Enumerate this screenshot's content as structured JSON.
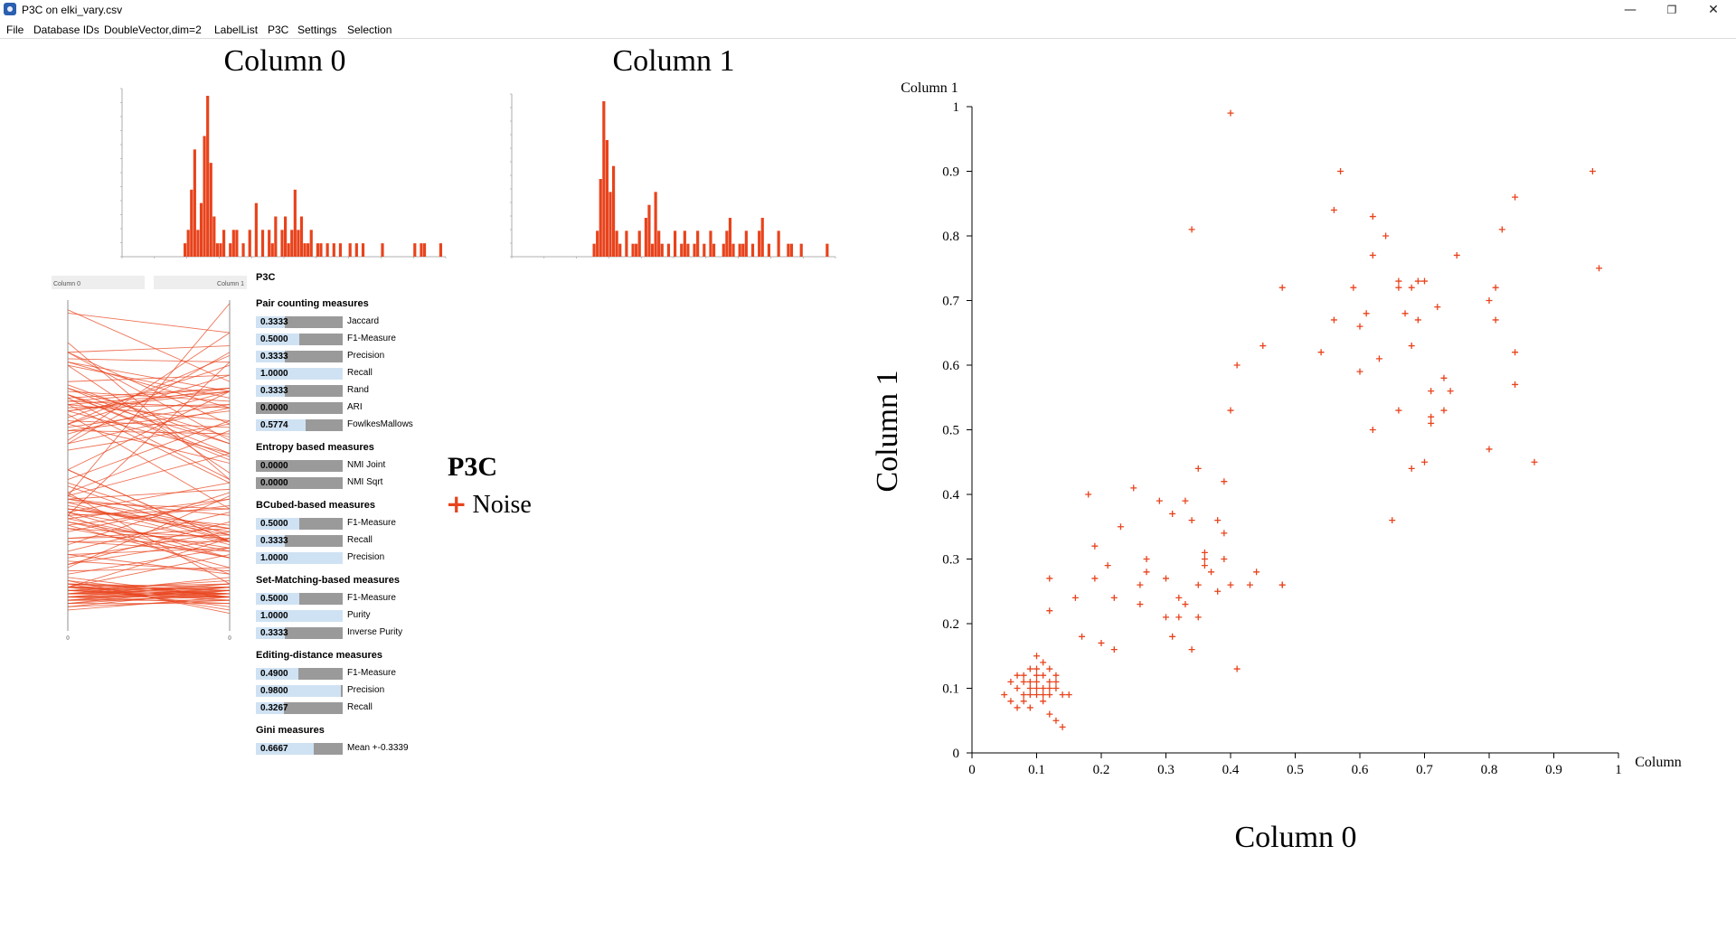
{
  "window": {
    "title": "P3C on elki_vary.csv",
    "minimize_icon": "minimize-icon",
    "maximize_icon": "restore-icon",
    "close_icon": "close-icon"
  },
  "menu": [
    "File",
    "Database IDs",
    "DoubleVector,dim=2",
    "LabelList",
    "P3C",
    "Settings",
    "Selection"
  ],
  "colors": {
    "accent": "#e8431c",
    "bar_gray": "#9a9a9a",
    "bar_fill": "#cfe2f3"
  },
  "histograms": [
    {
      "title": "Column 0"
    },
    {
      "title": "Column 1"
    }
  ],
  "parallel": {
    "axis_left_label": "Column 0",
    "axis_right_label": "Column 1",
    "axis_left_zero": "0",
    "axis_right_zero": "0"
  },
  "evaluation": {
    "header": "P3C",
    "groups": [
      {
        "title": "Pair counting measures",
        "rows": [
          {
            "value": "0.3333",
            "fraction": 0.3333,
            "name": "Jaccard"
          },
          {
            "value": "0.5000",
            "fraction": 0.5,
            "name": "F1-Measure"
          },
          {
            "value": "0.3333",
            "fraction": 0.3333,
            "name": "Precision"
          },
          {
            "value": "1.0000",
            "fraction": 1.0,
            "name": "Recall"
          },
          {
            "value": "0.3333",
            "fraction": 0.3333,
            "name": "Rand"
          },
          {
            "value": "0.0000",
            "fraction": 0.0,
            "name": "ARI"
          },
          {
            "value": "0.5774",
            "fraction": 0.5774,
            "name": "FowlkesMallows"
          }
        ]
      },
      {
        "title": "Entropy based measures",
        "rows": [
          {
            "value": "0.0000",
            "fraction": 0.0,
            "name": "NMI Joint"
          },
          {
            "value": "0.0000",
            "fraction": 0.0,
            "name": "NMI Sqrt"
          }
        ]
      },
      {
        "title": "BCubed-based measures",
        "rows": [
          {
            "value": "0.5000",
            "fraction": 0.5,
            "name": "F1-Measure"
          },
          {
            "value": "0.3333",
            "fraction": 0.3333,
            "name": "Recall"
          },
          {
            "value": "1.0000",
            "fraction": 1.0,
            "name": "Precision"
          }
        ]
      },
      {
        "title": "Set-Matching-based measures",
        "rows": [
          {
            "value": "0.5000",
            "fraction": 0.5,
            "name": "F1-Measure"
          },
          {
            "value": "1.0000",
            "fraction": 1.0,
            "name": "Purity"
          },
          {
            "value": "0.3333",
            "fraction": 0.3333,
            "name": "Inverse Purity"
          }
        ]
      },
      {
        "title": "Editing-distance measures",
        "rows": [
          {
            "value": "0.4900",
            "fraction": 0.49,
            "name": "F1-Measure"
          },
          {
            "value": "0.9800",
            "fraction": 0.98,
            "name": "Precision"
          },
          {
            "value": "0.3267",
            "fraction": 0.3267,
            "name": "Recall"
          }
        ]
      },
      {
        "title": "Gini measures",
        "rows": [
          {
            "value": "0.6667",
            "fraction": 0.6667,
            "name": "Mean +-0.3339"
          }
        ]
      }
    ]
  },
  "legend": {
    "title": "P3C",
    "items": [
      {
        "marker": "+",
        "label": "Noise"
      }
    ]
  },
  "chart_data": [
    {
      "type": "bar",
      "title": "Column 0",
      "xlim": [
        0,
        1
      ],
      "bins": 100,
      "values": [
        0,
        0,
        0,
        0,
        0,
        0,
        0,
        0,
        0,
        0,
        0,
        0,
        0,
        0,
        0,
        0,
        0,
        0,
        0,
        1,
        2,
        5,
        8,
        2,
        4,
        9,
        12,
        7,
        3,
        1,
        1,
        2,
        0,
        1,
        2,
        2,
        0,
        1,
        0,
        2,
        0,
        4,
        0,
        2,
        0,
        2,
        1,
        3,
        0,
        2,
        3,
        1,
        2,
        5,
        2,
        3,
        1,
        1,
        2,
        0,
        1,
        1,
        0,
        1,
        0,
        1,
        0,
        1,
        0,
        0,
        1,
        0,
        1,
        0,
        1,
        0,
        0,
        0,
        0,
        0,
        1,
        0,
        0,
        0,
        0,
        0,
        0,
        0,
        0,
        0,
        1,
        0,
        1,
        1,
        0,
        0,
        0,
        0,
        1,
        0
      ]
    },
    {
      "type": "bar",
      "title": "Column 1",
      "xlim": [
        0,
        1
      ],
      "bins": 100,
      "values": [
        0,
        0,
        0,
        0,
        0,
        0,
        0,
        0,
        0,
        0,
        0,
        0,
        0,
        0,
        0,
        0,
        0,
        0,
        0,
        0,
        0,
        0,
        0,
        0,
        0,
        1,
        2,
        6,
        12,
        9,
        5,
        7,
        2,
        1,
        0,
        2,
        0,
        1,
        1,
        2,
        0,
        3,
        4,
        1,
        5,
        2,
        1,
        0,
        1,
        0,
        2,
        0,
        1,
        2,
        1,
        0,
        1,
        2,
        0,
        1,
        0,
        2,
        1,
        0,
        0,
        1,
        2,
        3,
        1,
        0,
        1,
        1,
        2,
        0,
        1,
        0,
        2,
        3,
        0,
        1,
        0,
        0,
        2,
        0,
        0,
        1,
        1,
        0,
        0,
        1,
        0,
        0,
        0,
        0,
        0,
        0,
        0,
        1,
        0,
        0
      ]
    },
    {
      "type": "scatter",
      "title": "",
      "xlabel": "Column 0",
      "ylabel": "Column 1",
      "x_axis_end_label": "Column",
      "y_axis_top_label": "Column 1",
      "xlim": [
        0,
        1
      ],
      "ylim": [
        0,
        1
      ],
      "xticks": [
        "0",
        "0.1",
        "0.2",
        "0.3",
        "0.4",
        "0.5",
        "0.6",
        "0.7",
        "0.8",
        "0.9",
        "1"
      ],
      "yticks": [
        "0",
        "0.1",
        "0.2",
        "0.3",
        "0.4",
        "0.5",
        "0.6",
        "0.7",
        "0.8",
        "0.9",
        "1"
      ],
      "marker": "+",
      "grid": false,
      "series": [
        {
          "name": "Noise",
          "points": [
            [
              0.05,
              0.09
            ],
            [
              0.06,
              0.11
            ],
            [
              0.07,
              0.07
            ],
            [
              0.07,
              0.1
            ],
            [
              0.08,
              0.08
            ],
            [
              0.08,
              0.12
            ],
            [
              0.08,
              0.09
            ],
            [
              0.09,
              0.1
            ],
            [
              0.09,
              0.11
            ],
            [
              0.09,
              0.07
            ],
            [
              0.1,
              0.09
            ],
            [
              0.1,
              0.13
            ],
            [
              0.1,
              0.1
            ],
            [
              0.1,
              0.11
            ],
            [
              0.11,
              0.08
            ],
            [
              0.11,
              0.12
            ],
            [
              0.11,
              0.1
            ],
            [
              0.11,
              0.14
            ],
            [
              0.12,
              0.09
            ],
            [
              0.12,
              0.11
            ],
            [
              0.12,
              0.13
            ],
            [
              0.12,
              0.06
            ],
            [
              0.13,
              0.1
            ],
            [
              0.13,
              0.12
            ],
            [
              0.13,
              0.05
            ],
            [
              0.14,
              0.09
            ],
            [
              0.14,
              0.04
            ],
            [
              0.15,
              0.09
            ],
            [
              0.1,
              0.15
            ],
            [
              0.09,
              0.13
            ],
            [
              0.06,
              0.08
            ],
            [
              0.11,
              0.09
            ],
            [
              0.1,
              0.12
            ],
            [
              0.08,
              0.11
            ],
            [
              0.12,
              0.1
            ],
            [
              0.13,
              0.11
            ],
            [
              0.07,
              0.12
            ],
            [
              0.09,
              0.09
            ],
            [
              0.12,
              0.22
            ],
            [
              0.12,
              0.27
            ],
            [
              0.16,
              0.24
            ],
            [
              0.17,
              0.18
            ],
            [
              0.18,
              0.4
            ],
            [
              0.19,
              0.32
            ],
            [
              0.19,
              0.27
            ],
            [
              0.2,
              0.17
            ],
            [
              0.21,
              0.29
            ],
            [
              0.22,
              0.16
            ],
            [
              0.22,
              0.24
            ],
            [
              0.23,
              0.35
            ],
            [
              0.25,
              0.41
            ],
            [
              0.26,
              0.26
            ],
            [
              0.26,
              0.23
            ],
            [
              0.27,
              0.28
            ],
            [
              0.27,
              0.3
            ],
            [
              0.29,
              0.39
            ],
            [
              0.3,
              0.27
            ],
            [
              0.3,
              0.21
            ],
            [
              0.31,
              0.37
            ],
            [
              0.31,
              0.18
            ],
            [
              0.32,
              0.21
            ],
            [
              0.32,
              0.24
            ],
            [
              0.33,
              0.23
            ],
            [
              0.33,
              0.39
            ],
            [
              0.34,
              0.36
            ],
            [
              0.34,
              0.16
            ],
            [
              0.35,
              0.26
            ],
            [
              0.35,
              0.44
            ],
            [
              0.35,
              0.21
            ],
            [
              0.36,
              0.29
            ],
            [
              0.36,
              0.31
            ],
            [
              0.36,
              0.3
            ],
            [
              0.37,
              0.28
            ],
            [
              0.38,
              0.25
            ],
            [
              0.38,
              0.36
            ],
            [
              0.39,
              0.42
            ],
            [
              0.39,
              0.34
            ],
            [
              0.39,
              0.3
            ],
            [
              0.4,
              0.26
            ],
            [
              0.4,
              0.53
            ],
            [
              0.41,
              0.13
            ],
            [
              0.43,
              0.26
            ],
            [
              0.44,
              0.28
            ],
            [
              0.45,
              0.63
            ],
            [
              0.48,
              0.26
            ],
            [
              0.48,
              0.26
            ],
            [
              0.48,
              0.72
            ],
            [
              0.34,
              0.81
            ],
            [
              0.4,
              0.99
            ],
            [
              0.41,
              0.6
            ],
            [
              0.54,
              0.62
            ],
            [
              0.56,
              0.84
            ],
            [
              0.56,
              0.67
            ],
            [
              0.57,
              0.9
            ],
            [
              0.59,
              0.72
            ],
            [
              0.6,
              0.66
            ],
            [
              0.6,
              0.59
            ],
            [
              0.61,
              0.68
            ],
            [
              0.62,
              0.77
            ],
            [
              0.62,
              0.83
            ],
            [
              0.62,
              0.5
            ],
            [
              0.63,
              0.61
            ],
            [
              0.64,
              0.8
            ],
            [
              0.65,
              0.36
            ],
            [
              0.66,
              0.72
            ],
            [
              0.66,
              0.53
            ],
            [
              0.66,
              0.73
            ],
            [
              0.67,
              0.68
            ],
            [
              0.68,
              0.44
            ],
            [
              0.68,
              0.72
            ],
            [
              0.68,
              0.63
            ],
            [
              0.69,
              0.73
            ],
            [
              0.69,
              0.67
            ],
            [
              0.7,
              0.45
            ],
            [
              0.7,
              0.73
            ],
            [
              0.71,
              0.51
            ],
            [
              0.71,
              0.56
            ],
            [
              0.71,
              0.52
            ],
            [
              0.72,
              0.69
            ],
            [
              0.73,
              0.58
            ],
            [
              0.73,
              0.53
            ],
            [
              0.74,
              0.56
            ],
            [
              0.75,
              0.77
            ],
            [
              0.8,
              0.7
            ],
            [
              0.8,
              0.47
            ],
            [
              0.81,
              0.67
            ],
            [
              0.81,
              0.72
            ],
            [
              0.82,
              0.81
            ],
            [
              0.84,
              0.62
            ],
            [
              0.84,
              0.57
            ],
            [
              0.84,
              0.86
            ],
            [
              0.87,
              0.45
            ],
            [
              0.96,
              0.9
            ],
            [
              0.97,
              0.75
            ]
          ]
        }
      ]
    },
    {
      "type": "line",
      "title": "",
      "axes": [
        "Column 0",
        "Column 1"
      ],
      "lines_from_points_of": "scatter",
      "ylim": [
        0,
        1
      ]
    }
  ]
}
